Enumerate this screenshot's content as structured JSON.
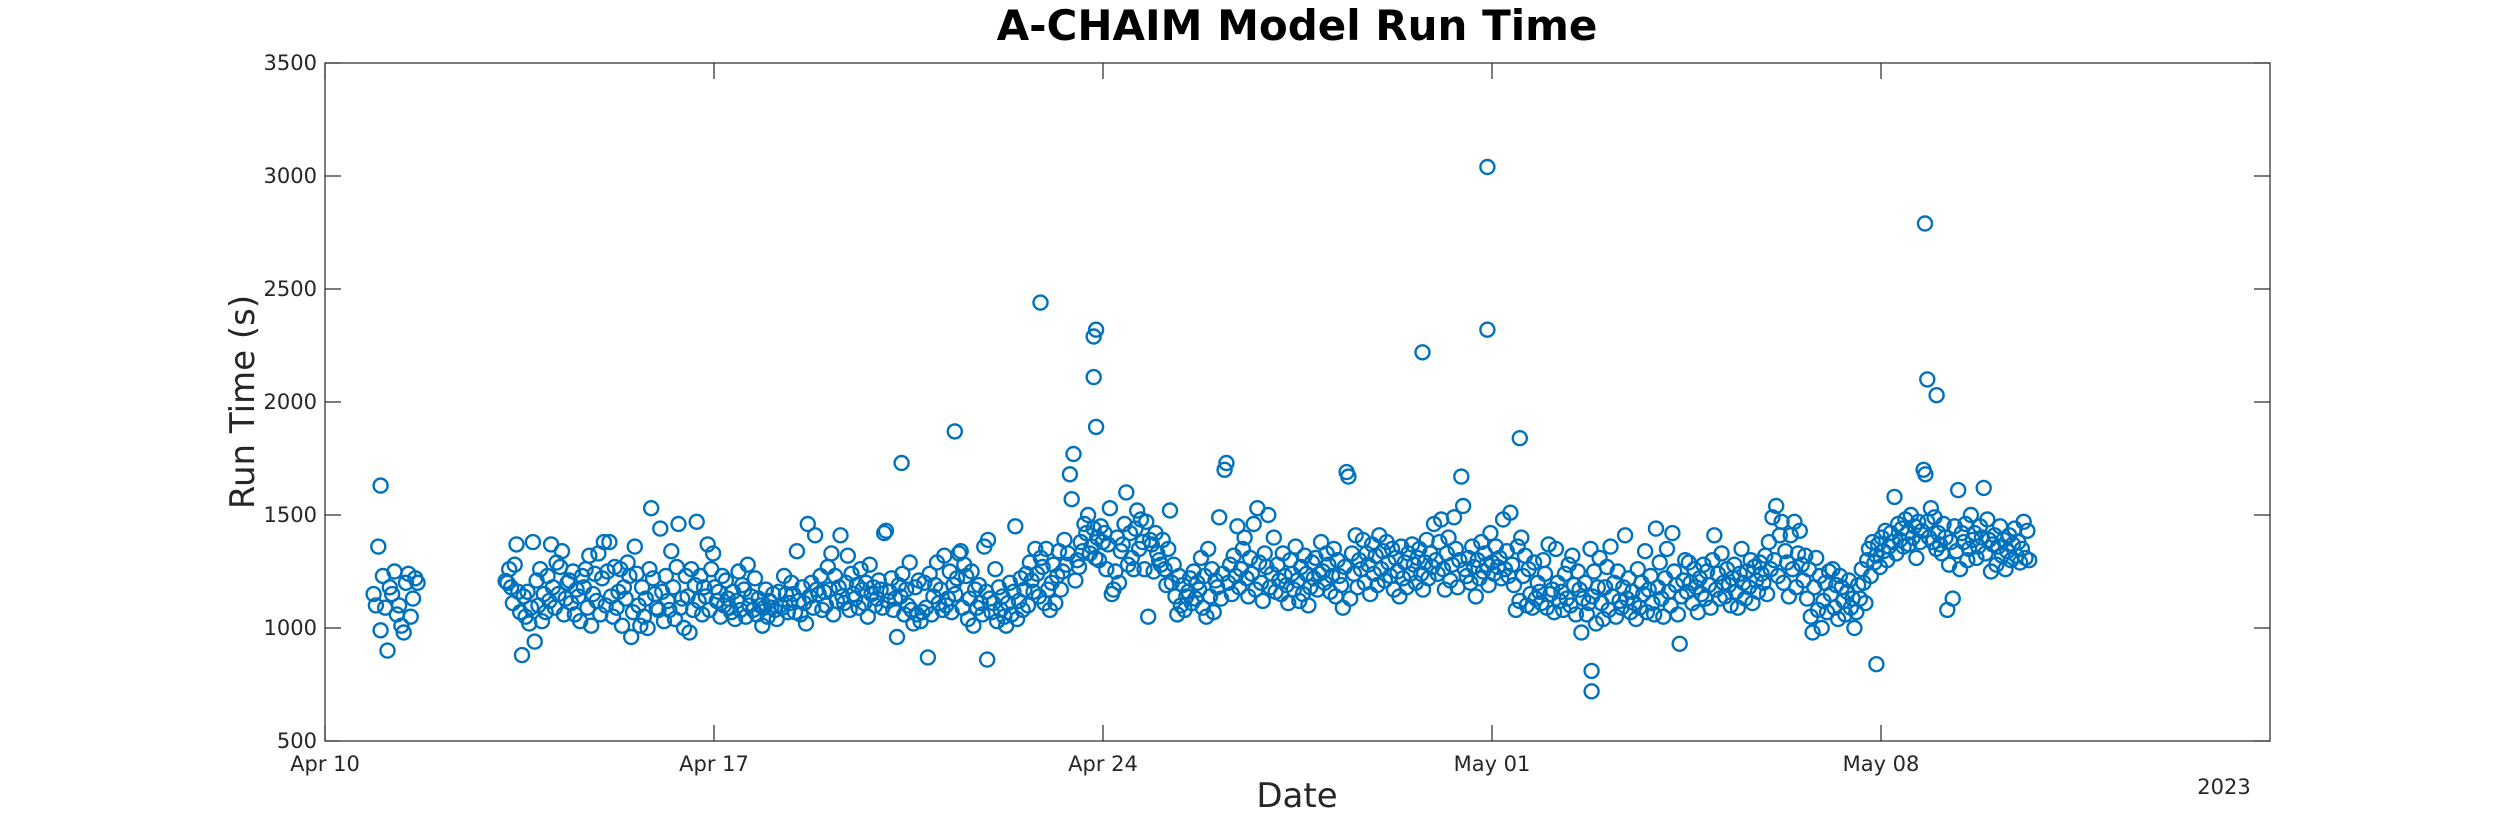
{
  "chart_data": {
    "type": "scatter",
    "title": "A-CHAIM Model Run Time",
    "xlabel": "Date",
    "ylabel": "Run Time (s)",
    "year_label": "2023",
    "marker": "open-circle",
    "color": "#0072BD",
    "grid": false,
    "xlim": [
      "2023-04-10",
      "2023-05-15"
    ],
    "ylim": [
      500,
      3500
    ],
    "x_ticks": [
      "Apr 10",
      "Apr 17",
      "Apr 24",
      "May 01",
      "May 08"
    ],
    "y_ticks": [
      500,
      1000,
      1500,
      2000,
      2500,
      3000,
      3500
    ],
    "notable_points": [
      {
        "x": "2023-04-11 00:00",
        "y": 1630
      },
      {
        "x": "2023-04-20 09:00",
        "y": 1730
      },
      {
        "x": "2023-04-21 08:00",
        "y": 1870
      },
      {
        "x": "2023-04-22 21:00",
        "y": 2440
      },
      {
        "x": "2023-04-23 21:00",
        "y": 2320
      },
      {
        "x": "2023-04-23 20:00",
        "y": 2290
      },
      {
        "x": "2023-04-23 20:00",
        "y": 2110
      },
      {
        "x": "2023-04-23 21:00",
        "y": 1890
      },
      {
        "x": "2023-04-30 22:00",
        "y": 3040
      },
      {
        "x": "2023-04-30 22:00",
        "y": 2320
      },
      {
        "x": "2023-04-29 18:00",
        "y": 2220
      },
      {
        "x": "2023-05-01 12:00",
        "y": 1840
      },
      {
        "x": "2023-05-02 19:00",
        "y": 720
      },
      {
        "x": "2023-05-02 19:00",
        "y": 810
      },
      {
        "x": "2023-05-08 19:00",
        "y": 2790
      },
      {
        "x": "2023-05-08 20:00",
        "y": 2100
      },
      {
        "x": "2023-05-09 00:00",
        "y": 2030
      },
      {
        "x": "2023-05-07 22:00",
        "y": 840
      },
      {
        "x": "2023-04-21 22:00",
        "y": 860
      }
    ],
    "series": [
      {
        "x_start": "2023-04-10 21:00",
        "x_end": "2023-04-11 16:00",
        "x_step_hours": 1,
        "values": [
          1150,
          1100,
          1360,
          990,
          1230,
          1090,
          900,
          1180,
          1150,
          1250,
          1060,
          1100,
          1010,
          980,
          1200,
          1240,
          1050,
          1130,
          1220,
          1200
        ]
      },
      {
        "x_start": "2023-04-13 06:00",
        "x_end": "2023-05-10 16:00",
        "x_step_hours": 1,
        "values": [
          1208,
          1200,
          1260,
          1180,
          1110,
          1280,
          1370,
          1160,
          1070,
          880,
          1140,
          1050,
          1160,
          1020,
          1090,
          1380,
          940,
          1210,
          1100,
          1260,
          1030,
          1150,
          1070,
          1230,
          1120,
          1370,
          1180,
          1090,
          1290,
          1150,
          1270,
          1340,
          1060,
          1130,
          1200,
          1210,
          1110,
          1250,
          1060,
          1170,
          1140,
          1030,
          1230,
          1180,
          1260,
          1090,
          1320,
          1010,
          1150,
          1240,
          1120,
          1330,
          1060,
          1220,
          1380,
          1100,
          1250,
          1380,
          1140,
          1050,
          1270,
          1090,
          1160,
          1260,
          1010,
          1180,
          1130,
          1290,
          1230,
          960,
          1070,
          1360,
          1240,
          1100,
          1010,
          1180,
          1050,
          1130,
          1000,
          1260,
          1530,
          1220,
          1150,
          1090,
          1080,
          1440,
          1160,
          1030,
          1230,
          1120,
          1080,
          1340,
          1180,
          1040,
          1270,
          1460,
          1090,
          1130,
          1000,
          1230,
          1140,
          980,
          1260,
          1080,
          1190,
          1470,
          1120,
          1230,
          1060,
          1180,
          1140,
          1370,
          1080,
          1260,
          1330,
          1180,
          1120,
          1160,
          1050,
          1230,
          1100,
          1210,
          1130,
          1090,
          1070,
          1160,
          1040,
          1120,
          1250,
          1080,
          1190,
          1170,
          1050,
          1280,
          1100,
          1140,
          1080,
          1220,
          1060,
          1130,
          1100,
          1010,
          1090,
          1170,
          1050,
          1120,
          1090,
          1150,
          1080,
          1040,
          1160,
          1100,
          1090,
          1230,
          1150,
          1070,
          1110,
          1200,
          1150,
          1070,
          1340,
          1120,
          1060,
          1180,
          1110,
          1020,
          1460,
          1140,
          1200,
          1090,
          1410,
          1170,
          1150,
          1230,
          1080,
          1160,
          1100,
          1270,
          1170,
          1330,
          1060,
          1230,
          1120,
          1180,
          1410,
          1140,
          1110,
          1200,
          1320,
          1080,
          1240,
          1150,
          1130,
          1190,
          1090,
          1260,
          1170,
          1110,
          1200,
          1050,
          1280,
          1150,
          1180,
          1100,
          1130,
          1210,
          1170,
          1090,
          1420,
          1430,
          1120,
          1160,
          1220,
          1080,
          1130,
          960,
          1190,
          1140,
          1240,
          1060,
          1170,
          1100,
          1290,
          1080,
          1020,
          1180,
          1060,
          1210,
          1030,
          1070,
          1200,
          1090,
          870,
          1240,
          1060,
          1140,
          1190,
          1290,
          1110,
          1170,
          1080,
          1320,
          1100,
          1130,
          1250,
          1070,
          1190,
          1150,
          1220,
          1330,
          1340,
          1090,
          1280,
          1230,
          1040,
          1130,
          1250,
          1010,
          1170,
          1090,
          1190,
          1110,
          1060,
          1360,
          1160,
          1390,
          1130,
          1070,
          1110,
          1260,
          1030,
          1180,
          1080,
          1140,
          1050,
          1010,
          1110,
          1200,
          1060,
          1160,
          1450,
          1040,
          1120,
          1220,
          1080,
          1170,
          1240,
          1100,
          1290,
          1210,
          1160,
          1350,
          1240,
          1140,
          1310,
          1270,
          1110,
          1350,
          1170,
          1080,
          1200,
          1280,
          1110,
          1230,
          1340,
          1170,
          1250,
          1390,
          1280,
          1330,
          1680,
          1570,
          1770,
          1210,
          1300,
          1270,
          1380,
          1340,
          1460,
          1420,
          1500,
          1330,
          1360,
          1440,
          1310,
          1400,
          1300,
          1450,
          1380,
          1420,
          1260,
          1370,
          1530,
          1150,
          1170,
          1250,
          1400,
          1200,
          1340,
          1370,
          1460,
          1600,
          1280,
          1420,
          1310,
          1260,
          1440,
          1520,
          1350,
          1480,
          1380,
          1260,
          1470,
          1050,
          1390,
          1370,
          1250,
          1420,
          1330,
          1300,
          1280,
          1390,
          1260,
          1190,
          1350,
          1520,
          1200,
          1280,
          1140,
          1060,
          1230,
          1100,
          1190,
          1080,
          1140,
          1160,
          1220,
          1110,
          1250,
          1130,
          1200,
          1170,
          1310,
          1090,
          1230,
          1050,
          1350,
          1140,
          1260,
          1070,
          1210,
          1180,
          1490,
          1130,
          1240,
          1700,
          1730,
          1200,
          1280,
          1150,
          1320,
          1230,
          1450,
          1180,
          1260,
          1350,
          1400,
          1220,
          1140,
          1310,
          1240,
          1460,
          1170,
          1530,
          1290,
          1200,
          1120,
          1330,
          1270,
          1500,
          1180,
          1240,
          1400,
          1160,
          1280,
          1210,
          1150,
          1330,
          1230,
          1190,
          1110,
          1300,
          1240,
          1170,
          1360,
          1210,
          1120,
          1270,
          1150,
          1320,
          1240,
          1100,
          1180,
          1290,
          1220,
          1310,
          1170,
          1240,
          1380,
          1250,
          1200,
          1330,
          1280,
          1160,
          1230,
          1350,
          1140,
          1300,
          1230,
          1190,
          1090,
          1270,
          1690,
          1670,
          1130,
          1330,
          1240,
          1410,
          1180,
          1300,
          1260,
          1390,
          1200,
          1330,
          1280,
          1150,
          1370,
          1240,
          1320,
          1190,
          1410,
          1260,
          1340,
          1210,
          1380,
          1290,
          1230,
          1350,
          1170,
          1310,
          1250,
          1140,
          1360,
          1220,
          1290,
          1180,
          1330,
          1240,
          1370,
          1280,
          1200,
          1310,
          1350,
          1240,
          1170,
          1290,
          1390,
          1220,
          1330,
          1270,
          1460,
          1300,
          1240,
          1380,
          1480,
          1260,
          1170,
          1330,
          1400,
          1210,
          1280,
          1490,
          1350,
          1180,
          1300,
          1670,
          1540,
          1260,
          1230,
          1310,
          1200,
          1360,
          1270,
          1140,
          1300,
          1220,
          1380,
          1250,
          1330,
          1280,
          1190,
          1420,
          1290,
          1240,
          1360,
          1270,
          1310,
          1220,
          1480,
          1260,
          1340,
          1230,
          1510,
          1280,
          1190,
          1080,
          1360,
          1120,
          1400,
          1230,
          1320,
          1100,
          1260,
          1150,
          1090,
          1290,
          1130,
          1200,
          1160,
          1110,
          1300,
          1240,
          1090,
          1370,
          1150,
          1170,
          1070,
          1350,
          1200,
          1120,
          1160,
          1080,
          1240,
          1130,
          1280,
          1100,
          1320,
          1190,
          1060,
          1250,
          1170,
          980,
          1130,
          1200,
          1060,
          1110,
          1350,
          1140,
          1250,
          1020,
          1180,
          1310,
          1110,
          1040,
          1180,
          1270,
          1080,
          1360,
          1140,
          1200,
          1050,
          1250,
          1120,
          1090,
          1180,
          1410,
          1130,
          1220,
          1070,
          1160,
          1110,
          1040,
          1260,
          1090,
          1200,
          1150,
          1340,
          1070,
          1170,
          1230,
          1110,
          1060,
          1440,
          1180,
          1290,
          1130,
          1050,
          1220,
          1350,
          1160,
          1100,
          1420,
          1250,
          1190,
          1060,
          930,
          1140,
          1210,
          1300,
          1160,
          1290,
          1200,
          1110,
          1260,
          1180,
          1070,
          1220,
          1150,
          1280,
          1130,
          1250,
          1190,
          1090,
          1300,
          1410,
          1170,
          1240,
          1130,
          1330,
          1200,
          1140,
          1260,
          1190,
          1100,
          1220,
          1280,
          1160,
          1090,
          1240,
          1350,
          1200,
          1130,
          1250,
          1180,
          1300,
          1110,
          1270,
          1210,
          1160,
          1290,
          1240,
          1200,
          1320,
          1150,
          1380,
          1260,
          1490,
          1300,
          1540,
          1230,
          1410,
          1470,
          1200,
          1340,
          1290,
          1140,
          1410,
          1260,
          1470,
          1180,
          1330,
          1430,
          1280,
          1210,
          1320,
          1130,
          1260,
          1050,
          980,
          1180,
          1310,
          1080,
          1230,
          1000,
          1120,
          1200,
          1070,
          1250,
          1150,
          1260,
          1090,
          1190,
          1040,
          1230,
          1180,
          1120,
          1060,
          1160,
          1210,
          1090,
          1130,
          1000,
          1070,
          1190,
          1130,
          1260,
          1200,
          1110,
          1300,
          1350,
          1230,
          1380,
          1290,
          1320,
          1370,
          1270,
          1400,
          1340,
          1430,
          1300,
          1360,
          1420,
          1380,
          1580,
          1330,
          1460,
          1390,
          1440,
          1360,
          1480,
          1420,
          1370,
          1500,
          1400,
          1450,
          1310,
          1470,
          1380,
          1430,
          1700,
          1680,
          1470,
          1400,
          1530,
          1380,
          1490,
          1350,
          1420,
          1370,
          1330,
          1460,
          1400,
          1080,
          1280,
          1380,
          1130,
          1450,
          1340,
          1610,
          1260,
          1420,
          1380,
          1460,
          1300,
          1350,
          1500,
          1390,
          1420,
          1310,
          1360,
          1450,
          1400,
          1620,
          1330,
          1480,
          1390,
          1250,
          1370,
          1410,
          1280,
          1360,
          1450,
          1320,
          1390,
          1260,
          1340,
          1410,
          1300,
          1370,
          1440,
          1320,
          1380,
          1290,
          1350,
          1470,
          1310,
          1430,
          1300
        ]
      }
    ]
  }
}
